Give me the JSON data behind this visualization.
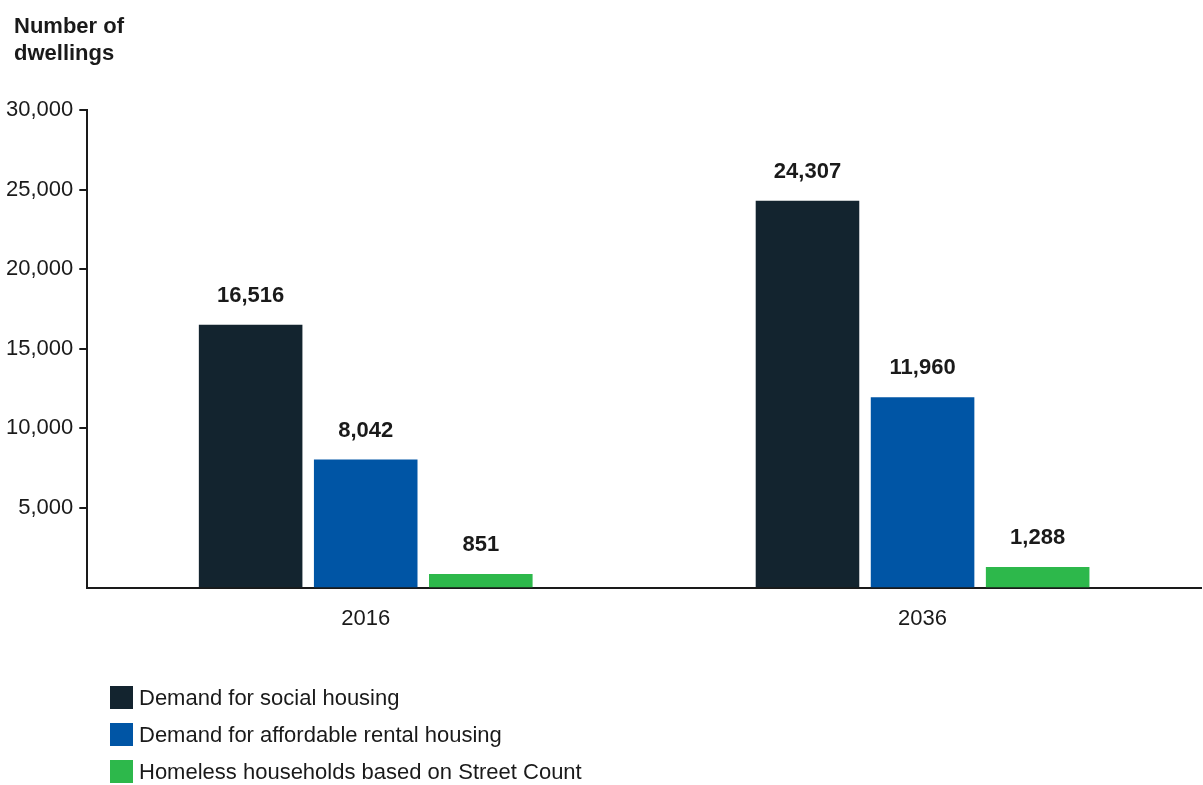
{
  "chart_data": {
    "type": "bar",
    "ylabel": "Number of dwellings",
    "categories": [
      "2016",
      "2036"
    ],
    "series": [
      {
        "name": "Demand for social housing",
        "color": "#13242f",
        "values": [
          16516,
          24307
        ],
        "value_labels": [
          "16,516",
          "24,307"
        ]
      },
      {
        "name": "Demand for affordable rental housing",
        "color": "#0055a5",
        "values": [
          8042,
          11960
        ],
        "value_labels": [
          "8,042",
          "11,960"
        ]
      },
      {
        "name": "Homeless households based on Street Count",
        "color": "#2db84b",
        "values": [
          851,
          1288
        ],
        "value_labels": [
          "851",
          "1,288"
        ]
      }
    ],
    "ylim": [
      0,
      30000
    ],
    "yticks": [
      {
        "value": 5000,
        "label": "5,000"
      },
      {
        "value": 10000,
        "label": "10,000"
      },
      {
        "value": 15000,
        "label": "15,000"
      },
      {
        "value": 20000,
        "label": "20,000"
      },
      {
        "value": 25000,
        "label": "25,000"
      },
      {
        "value": 30000,
        "label": "30,000"
      }
    ],
    "grid": false,
    "legend": "bottom left"
  }
}
